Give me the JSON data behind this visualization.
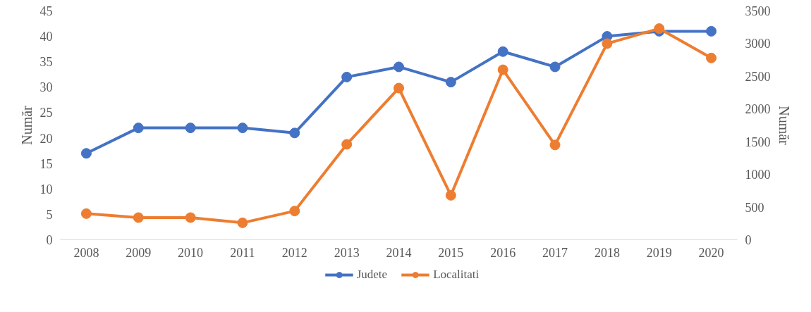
{
  "chart_data": {
    "type": "line",
    "ylabel": "Număr",
    "y2label": "Număr",
    "categories": [
      "2008",
      "2009",
      "2010",
      "2011",
      "2012",
      "2013",
      "2014",
      "2015",
      "2016",
      "2017",
      "2018",
      "2019",
      "2020"
    ],
    "series": [
      {
        "name": "Judete",
        "color": "#4472c4",
        "values": [
          17,
          22,
          22,
          22,
          21,
          32,
          34,
          31,
          37,
          34,
          40,
          41,
          41
        ]
      },
      {
        "name": "Localitati",
        "color": "#ed7d31",
        "axis": "y2",
        "values": [
          400,
          340,
          340,
          260,
          440,
          1460,
          2320,
          680,
          2600,
          1450,
          3000,
          3230,
          2780
        ]
      }
    ],
    "ylim": [
      0,
      45
    ],
    "yticks": [
      0,
      5,
      10,
      15,
      20,
      25,
      30,
      35,
      40,
      45
    ],
    "y2lim": [
      0,
      3500
    ],
    "y2ticks": [
      0,
      500,
      1000,
      1500,
      2000,
      2500,
      3000,
      3500
    ],
    "grid": false,
    "legend": "bottom",
    "marker": "circle",
    "line_style": "solid"
  }
}
